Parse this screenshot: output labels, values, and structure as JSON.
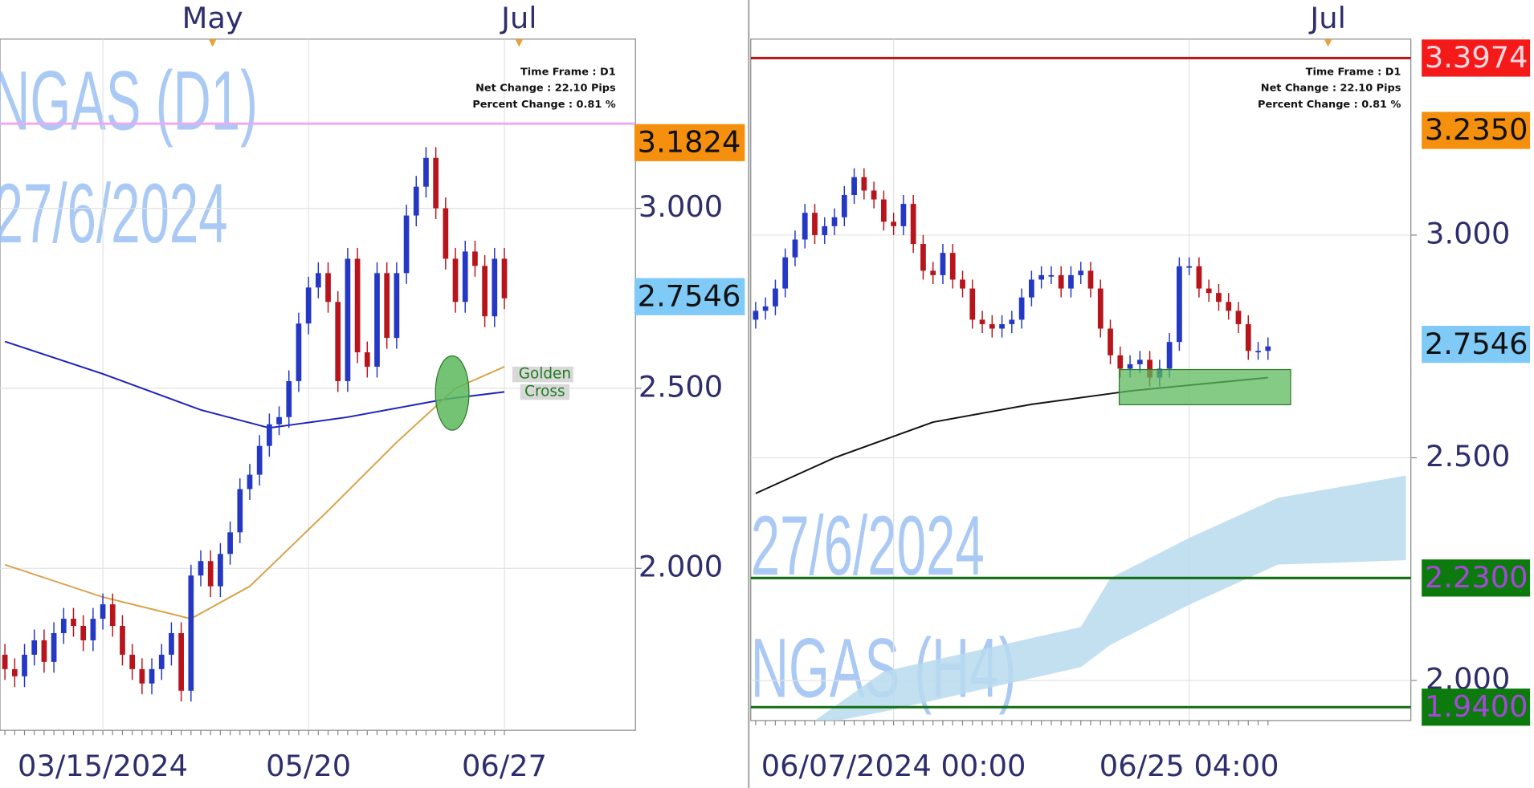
{
  "chart_data": [
    {
      "type": "candlestick",
      "watermark": [
        "NGAS (D1)",
        "27/6/2024"
      ],
      "info": [
        "Time Frame : D1",
        "Net Change : 22.10 Pips",
        "Percent Change : 0.81 %"
      ],
      "top_labels": [
        "May",
        "Jul"
      ],
      "categories": [
        null,
        null,
        null,
        null,
        null,
        null,
        null,
        null,
        null,
        null,
        "03/15/2024",
        null,
        null,
        null,
        null,
        null,
        null,
        null,
        null,
        null,
        null,
        null,
        null,
        null,
        null,
        null,
        null,
        null,
        null,
        null,
        null,
        "05/20",
        null,
        null,
        null,
        null,
        null,
        null,
        null,
        null,
        null,
        null,
        null,
        null,
        null,
        null,
        null,
        null,
        null,
        null,
        null,
        "06/27"
      ],
      "open": [
        1.76,
        1.72,
        1.7,
        1.76,
        1.8,
        1.74,
        1.82,
        1.86,
        1.84,
        1.8,
        1.86,
        1.9,
        1.84,
        1.76,
        1.72,
        1.68,
        1.72,
        1.76,
        1.82,
        1.66,
        1.98,
        2.02,
        1.95,
        2.04,
        2.1,
        2.22,
        2.26,
        2.34,
        2.4,
        2.42,
        2.52,
        2.68,
        2.78,
        2.82,
        2.74,
        2.52,
        2.86,
        2.6,
        2.56,
        2.82,
        2.64,
        2.82,
        2.98,
        3.06,
        3.14,
        3.0,
        2.86,
        2.74,
        2.88,
        2.84,
        2.7,
        2.86
      ],
      "high": [
        1.79,
        1.75,
        1.79,
        1.83,
        1.83,
        1.85,
        1.89,
        1.89,
        1.87,
        1.89,
        1.93,
        1.93,
        1.87,
        1.79,
        1.75,
        1.75,
        1.79,
        1.85,
        1.85,
        2.01,
        2.05,
        2.05,
        2.07,
        2.13,
        2.25,
        2.29,
        2.37,
        2.43,
        2.45,
        2.55,
        2.71,
        2.81,
        2.85,
        2.85,
        2.77,
        2.89,
        2.89,
        2.63,
        2.85,
        2.85,
        2.85,
        3.01,
        3.09,
        3.17,
        3.17,
        3.03,
        2.89,
        2.91,
        2.91,
        2.87,
        2.89,
        2.89
      ],
      "low": [
        1.69,
        1.67,
        1.67,
        1.73,
        1.71,
        1.71,
        1.79,
        1.81,
        1.77,
        1.77,
        1.83,
        1.81,
        1.73,
        1.69,
        1.65,
        1.65,
        1.69,
        1.73,
        1.63,
        1.63,
        1.95,
        1.92,
        1.92,
        2.01,
        2.07,
        2.19,
        2.23,
        2.31,
        2.37,
        2.39,
        2.49,
        2.65,
        2.75,
        2.71,
        2.49,
        2.49,
        2.57,
        2.53,
        2.53,
        2.61,
        2.61,
        2.79,
        2.95,
        3.03,
        2.97,
        2.83,
        2.71,
        2.71,
        2.81,
        2.67,
        2.67,
        2.72
      ],
      "close": [
        1.72,
        1.7,
        1.76,
        1.8,
        1.74,
        1.82,
        1.86,
        1.84,
        1.8,
        1.86,
        1.9,
        1.84,
        1.76,
        1.72,
        1.68,
        1.72,
        1.76,
        1.82,
        1.66,
        1.98,
        2.02,
        1.95,
        2.04,
        2.1,
        2.22,
        2.26,
        2.34,
        2.4,
        2.42,
        2.52,
        2.68,
        2.78,
        2.82,
        2.74,
        2.52,
        2.86,
        2.6,
        2.56,
        2.82,
        2.64,
        2.82,
        2.98,
        3.06,
        3.14,
        3.0,
        2.86,
        2.74,
        2.88,
        2.84,
        2.7,
        2.86,
        2.75
      ],
      "up_color": "#2438c4",
      "down_color": "#b8141c",
      "lines": [
        {
          "color": "#1c22b8",
          "x": [
            0,
            10,
            20,
            27,
            35,
            45,
            51
          ],
          "values": [
            2.63,
            2.54,
            2.44,
            2.39,
            2.42,
            2.47,
            2.49
          ]
        },
        {
          "color": "#d9a046",
          "x": [
            0,
            10,
            19,
            25,
            33,
            40,
            46,
            51
          ],
          "values": [
            2.01,
            1.92,
            1.86,
            1.95,
            2.16,
            2.35,
            2.5,
            2.56
          ]
        }
      ],
      "levels": [
        {
          "value": 3.235,
          "color": "#f0a8f0"
        }
      ],
      "price_labels": [
        {
          "value": 3.1824,
          "color": "#f5900f",
          "text_color": "#111"
        },
        {
          "value": 2.7546,
          "color": "#7fcaf6",
          "text_color": "#111"
        }
      ],
      "annotation": [
        "Golden",
        "Cross"
      ],
      "ylim": [
        1.55,
        3.47
      ],
      "yticks": [
        {
          "value": 3,
          "label": "3.000"
        },
        {
          "value": 2.5,
          "label": "2.500"
        },
        {
          "value": 2,
          "label": "2.000"
        }
      ],
      "grid": true
    },
    {
      "type": "candlestick",
      "watermark": [
        "27/6/2024",
        "NGAS (H4)"
      ],
      "info": [
        "Time Frame : D1",
        "Net Change : 22.10 Pips",
        "Percent Change : 0.81 %"
      ],
      "top_labels": [
        "Jul"
      ],
      "categories": [
        null,
        null,
        null,
        null,
        null,
        null,
        null,
        null,
        null,
        null,
        null,
        null,
        null,
        null,
        "06/07/2024 00:00",
        null,
        null,
        null,
        null,
        null,
        null,
        null,
        null,
        null,
        null,
        null,
        null,
        null,
        null,
        null,
        null,
        null,
        null,
        null,
        null,
        null,
        null,
        null,
        null,
        null,
        null,
        null,
        null,
        null,
        "06/25 04:00",
        null,
        null,
        null,
        null,
        null,
        null,
        null,
        null
      ],
      "open": [
        2.81,
        2.83,
        2.84,
        2.88,
        2.95,
        2.99,
        3.05,
        3.0,
        3.02,
        3.04,
        3.09,
        3.13,
        3.1,
        3.08,
        3.03,
        3.02,
        3.07,
        2.98,
        2.92,
        2.91,
        2.96,
        2.9,
        2.88,
        2.81,
        2.8,
        2.79,
        2.8,
        2.81,
        2.86,
        2.9,
        2.91,
        2.91,
        2.88,
        2.91,
        2.92,
        2.88,
        2.79,
        2.73,
        2.7,
        2.71,
        2.72,
        2.68,
        2.7,
        2.76,
        2.93,
        2.93,
        2.88,
        2.87,
        2.85,
        2.83,
        2.8,
        2.74,
        2.74
      ],
      "high": [
        2.85,
        2.86,
        2.9,
        2.97,
        3.01,
        3.07,
        3.07,
        3.04,
        3.06,
        3.11,
        3.15,
        3.15,
        3.12,
        3.1,
        3.05,
        3.09,
        3.09,
        3.0,
        2.94,
        2.98,
        2.98,
        2.92,
        2.9,
        2.83,
        2.82,
        2.82,
        2.83,
        2.88,
        2.92,
        2.93,
        2.93,
        2.93,
        2.93,
        2.94,
        2.94,
        2.9,
        2.81,
        2.75,
        2.73,
        2.74,
        2.74,
        2.72,
        2.78,
        2.95,
        2.95,
        2.95,
        2.9,
        2.89,
        2.87,
        2.85,
        2.82,
        2.76,
        2.77
      ],
      "low": [
        2.79,
        2.81,
        2.82,
        2.86,
        2.93,
        2.97,
        2.98,
        2.98,
        3.0,
        3.02,
        3.07,
        3.08,
        3.06,
        3.01,
        3.0,
        3.0,
        2.96,
        2.9,
        2.89,
        2.89,
        2.88,
        2.86,
        2.79,
        2.78,
        2.77,
        2.77,
        2.78,
        2.79,
        2.84,
        2.88,
        2.89,
        2.86,
        2.86,
        2.89,
        2.86,
        2.77,
        2.71,
        2.68,
        2.68,
        2.69,
        2.66,
        2.66,
        2.68,
        2.74,
        2.91,
        2.86,
        2.85,
        2.83,
        2.81,
        2.78,
        2.72,
        2.72,
        2.72
      ],
      "close": [
        2.83,
        2.84,
        2.88,
        2.95,
        2.99,
        3.05,
        3.0,
        3.02,
        3.04,
        3.09,
        3.13,
        3.1,
        3.08,
        3.03,
        3.02,
        3.07,
        2.98,
        2.92,
        2.91,
        2.96,
        2.9,
        2.88,
        2.81,
        2.8,
        2.79,
        2.8,
        2.81,
        2.86,
        2.9,
        2.91,
        2.91,
        2.88,
        2.91,
        2.92,
        2.88,
        2.79,
        2.73,
        2.7,
        2.71,
        2.72,
        2.68,
        2.7,
        2.76,
        2.93,
        2.93,
        2.88,
        2.87,
        2.85,
        2.83,
        2.8,
        2.74,
        2.74,
        2.75
      ],
      "up_color": "#2438c4",
      "down_color": "#b8141c",
      "lines": [
        {
          "color": "#111111",
          "x": [
            0,
            8,
            18,
            28,
            38,
            52
          ],
          "values": [
            2.42,
            2.5,
            2.58,
            2.62,
            2.65,
            2.68
          ]
        }
      ],
      "cloud": {
        "color": "#b9daef",
        "x": [
          6,
          13,
          23,
          33,
          36,
          44,
          53,
          66
        ],
        "upper": [
          1.91,
          2.02,
          2.07,
          2.12,
          2.23,
          2.32,
          2.41,
          2.46
        ],
        "lower": [
          1.9,
          1.93,
          1.98,
          2.03,
          2.08,
          2.17,
          2.26,
          2.27
        ]
      },
      "levels": [
        {
          "value": 3.3974,
          "color": "#b01818"
        },
        {
          "value": 2.23,
          "color": "#136d13"
        },
        {
          "value": 1.94,
          "color": "#136d13"
        }
      ],
      "price_labels": [
        {
          "value": 3.3974,
          "color": "#f51a1a",
          "text_color": "#ffd8e0"
        },
        {
          "value": 3.235,
          "label": "3.2350",
          "color": "#f5900f",
          "text_color": "#111"
        },
        {
          "value": 2.7546,
          "color": "#7fcaf6",
          "text_color": "#111"
        },
        {
          "value": 2.23,
          "label": "2.2300",
          "color": "#0d7a0d",
          "text_color": "#a24ad6"
        },
        {
          "value": 1.94,
          "label": "1.9400",
          "color": "#0d7a0d",
          "text_color": "#a24ad6"
        }
      ],
      "ylim": [
        1.91,
        3.44
      ],
      "yticks": [
        {
          "value": 3,
          "label": "3.000"
        },
        {
          "value": 2.5,
          "label": "2.500"
        },
        {
          "value": 2,
          "label": "2.000"
        }
      ],
      "grid": true
    }
  ]
}
